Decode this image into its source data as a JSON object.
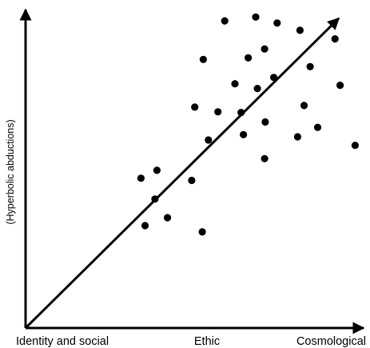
{
  "chart_data": {
    "type": "scatter",
    "title": "",
    "xlabel": "",
    "ylabel": "(Hyperbolic abductions)",
    "x_tick_labels": [
      "Identity and social",
      "Ethic",
      "Cosmological"
    ],
    "xlim": [
      0,
      100
    ],
    "ylim": [
      0,
      100
    ],
    "grid": false,
    "legend": "none",
    "trend_line": {
      "from": [
        0,
        0
      ],
      "to": [
        92,
        98
      ],
      "arrow": true
    },
    "series": [
      {
        "color": "#000000",
        "points": [
          {
            "x": 67.6,
            "y": 98.4
          },
          {
            "x": 58.5,
            "y": 97.2
          },
          {
            "x": 73.9,
            "y": 96.5
          },
          {
            "x": 80.6,
            "y": 94.2
          },
          {
            "x": 90.9,
            "y": 91.5
          },
          {
            "x": 70.2,
            "y": 88.3
          },
          {
            "x": 65.4,
            "y": 85.5
          },
          {
            "x": 52.2,
            "y": 85.0
          },
          {
            "x": 83.6,
            "y": 82.7
          },
          {
            "x": 72.9,
            "y": 79.3
          },
          {
            "x": 61.5,
            "y": 77.3
          },
          {
            "x": 92.4,
            "y": 76.8
          },
          {
            "x": 68.1,
            "y": 75.8
          },
          {
            "x": 49.7,
            "y": 69.9
          },
          {
            "x": 56.5,
            "y": 68.4
          },
          {
            "x": 63.3,
            "y": 68.2
          },
          {
            "x": 81.8,
            "y": 70.4
          },
          {
            "x": 70.4,
            "y": 65.2
          },
          {
            "x": 85.8,
            "y": 63.5
          },
          {
            "x": 64.0,
            "y": 61.2
          },
          {
            "x": 79.9,
            "y": 60.5
          },
          {
            "x": 53.7,
            "y": 59.5
          },
          {
            "x": 96.8,
            "y": 57.8
          },
          {
            "x": 70.2,
            "y": 53.6
          },
          {
            "x": 38.6,
            "y": 49.9
          },
          {
            "x": 33.9,
            "y": 47.4
          },
          {
            "x": 48.8,
            "y": 46.7
          },
          {
            "x": 38.0,
            "y": 40.8
          },
          {
            "x": 41.7,
            "y": 34.9
          },
          {
            "x": 35.1,
            "y": 32.4
          },
          {
            "x": 51.9,
            "y": 30.4
          }
        ]
      }
    ]
  }
}
